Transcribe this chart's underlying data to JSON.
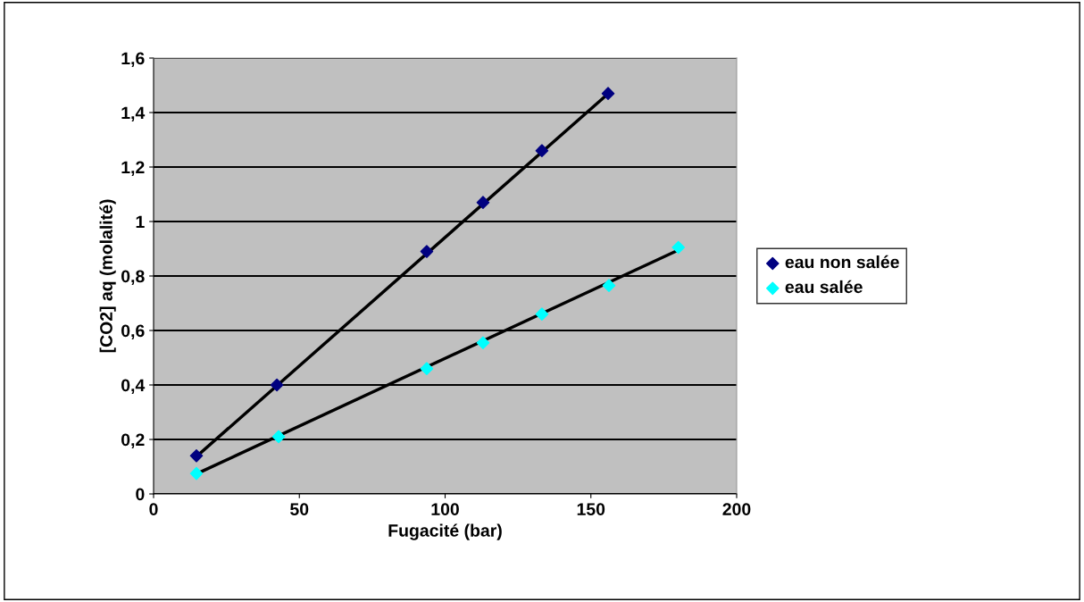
{
  "chart_data": {
    "type": "scatter",
    "xlabel": "Fugacité (bar)",
    "ylabel": "[CO2] aq (molalité)",
    "xlim": [
      0,
      200
    ],
    "xticks": [
      0,
      50,
      100,
      150,
      200
    ],
    "ylim": [
      0,
      1.6
    ],
    "yticks": [
      0,
      {
        "value": 0.2,
        "label": "0,2"
      },
      {
        "value": 0.4,
        "label": "0,4"
      },
      {
        "value": 0.6,
        "label": "0,6"
      },
      {
        "value": 0.8,
        "label": "0,8"
      },
      1,
      {
        "value": 1.2,
        "label": "1,2"
      },
      {
        "value": 1.4,
        "label": "1,4"
      },
      {
        "value": 1.6,
        "label": "1,6"
      }
    ],
    "grid": "y",
    "legend": "right",
    "marker": "diamond",
    "series": [
      {
        "name": "eau non salée",
        "color": "#000080",
        "x": [
          14.7,
          42.3,
          93.7,
          113,
          133.2,
          155.9
        ],
        "values": [
          0.14,
          0.4,
          0.89,
          1.07,
          1.26,
          1.47
        ]
      },
      {
        "name": "eau salée",
        "color": "#00ffff",
        "x": [
          14.7,
          42.9,
          93.7,
          113,
          133.2,
          156.2,
          180
        ],
        "values": [
          0.075,
          0.21,
          0.46,
          0.555,
          0.66,
          0.765,
          0.905
        ]
      },
      {
        "type": "line",
        "marker": "none",
        "color": "#000000",
        "x": [
          15,
          156
        ],
        "values": [
          0.14,
          1.47
        ]
      },
      {
        "type": "line",
        "marker": "none",
        "color": "#000000",
        "x": [
          15,
          180
        ],
        "values": [
          0.075,
          0.895
        ]
      }
    ]
  }
}
